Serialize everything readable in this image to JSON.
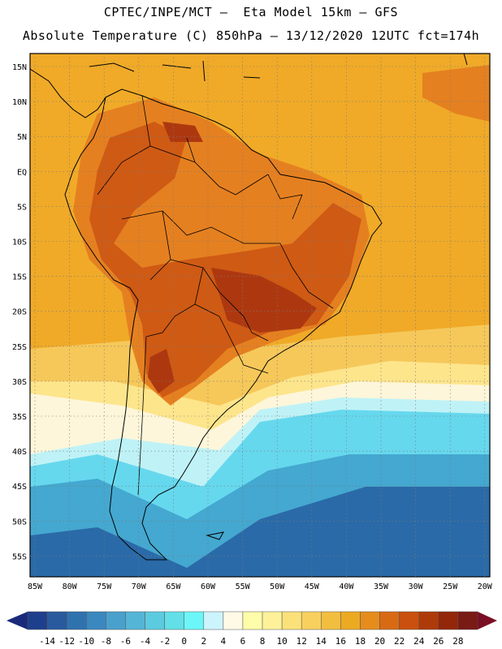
{
  "header": {
    "line1": "CPTEC/INPE/MCT —  Eta Model 15km — GFS",
    "line2": "Absolute Temperature (C) 850hPa — 13/12/2020 12UTC fct=174h"
  },
  "map": {
    "lat_ticks": [
      "15N",
      "10N",
      "5N",
      "EQ",
      "5S",
      "10S",
      "15S",
      "20S",
      "25S",
      "30S",
      "35S",
      "40S",
      "45S",
      "50S",
      "55S"
    ],
    "lon_ticks": [
      "85W",
      "80W",
      "75W",
      "70W",
      "65W",
      "60W",
      "55W",
      "50W",
      "45W",
      "40W",
      "35W",
      "30W",
      "25W",
      "20W"
    ],
    "field_colors": {
      "ocean_south_deep": "#2a6aa8",
      "ocean_south": "#44a8d0",
      "ocean_south_light": "#66d8ee",
      "cold_band": "#bff2f6",
      "cool_band": "#fdf6da",
      "mild": "#fde58c",
      "warm": "#f6c85a",
      "main": "#f0aa28",
      "hot": "#e58020",
      "hotter": "#cf5a14",
      "hottest": "#ad3810",
      "coast": "#000000"
    }
  },
  "colorbar": {
    "colors": [
      "#1e3f8c",
      "#2a5a9e",
      "#3072ae",
      "#3a88bf",
      "#4aa0cc",
      "#55b5d6",
      "#5ccbe0",
      "#63dfe8",
      "#6cf6f8",
      "#ccf4fc",
      "#fffae6",
      "#fffcaa",
      "#fdf29a",
      "#fbe17a",
      "#f7d05e",
      "#f1be40",
      "#ecaa22",
      "#e58c1c",
      "#d96a14",
      "#c9500e",
      "#ae3a0a",
      "#93270a",
      "#7a1a14"
    ],
    "labels": [
      "-14",
      "-12",
      "-10",
      "-8",
      "-6",
      "-4",
      "-2",
      "0",
      "2",
      "4",
      "6",
      "8",
      "10",
      "12",
      "14",
      "16",
      "18",
      "20",
      "22",
      "24",
      "26",
      "28"
    ],
    "arrow_left_color": "#1a2a7a",
    "arrow_right_color": "#7a0f24"
  }
}
